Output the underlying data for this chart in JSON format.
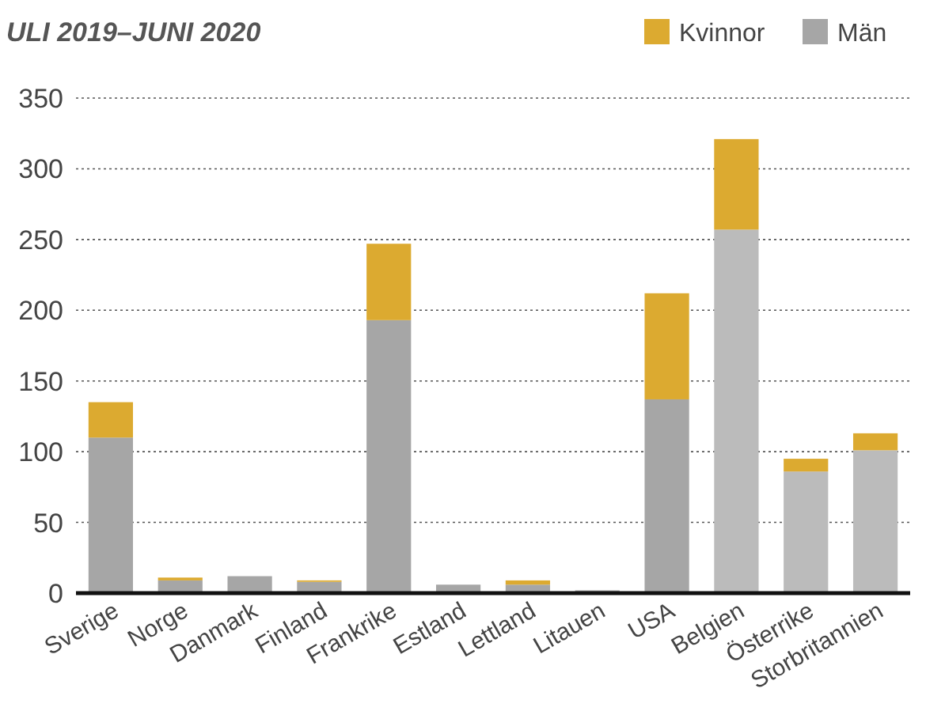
{
  "chart_data": {
    "type": "bar",
    "title": "ULI 2019–JUNI 2020",
    "stacked": true,
    "categories": [
      "Sverige",
      "Norge",
      "Danmark",
      "Finland",
      "Frankrike",
      "Estland",
      "Lettland",
      "Litauen",
      "USA",
      "Belgien",
      "Österrike",
      "Storbritannien"
    ],
    "series": [
      {
        "name": "Män",
        "color": "#a6a6a6",
        "colors": [
          "#a6a6a6",
          "#a6a6a6",
          "#a6a6a6",
          "#a6a6a6",
          "#a6a6a6",
          "#a6a6a6",
          "#a6a6a6",
          "#a6a6a6",
          "#a6a6a6",
          "#bbbbbb",
          "#bbbbbb",
          "#bbbbbb"
        ],
        "values": [
          110,
          9,
          12,
          8,
          193,
          6,
          6,
          2,
          137,
          257,
          86,
          101
        ]
      },
      {
        "name": "Kvinnor",
        "color": "#dcaa30",
        "values": [
          25,
          2,
          null,
          1,
          54,
          null,
          3,
          null,
          75,
          64,
          9,
          12
        ]
      }
    ],
    "ylim": [
      0,
      350
    ],
    "yticks": [
      0,
      50,
      100,
      150,
      200,
      250,
      300,
      350
    ],
    "grid": "y",
    "legend": "top right"
  }
}
